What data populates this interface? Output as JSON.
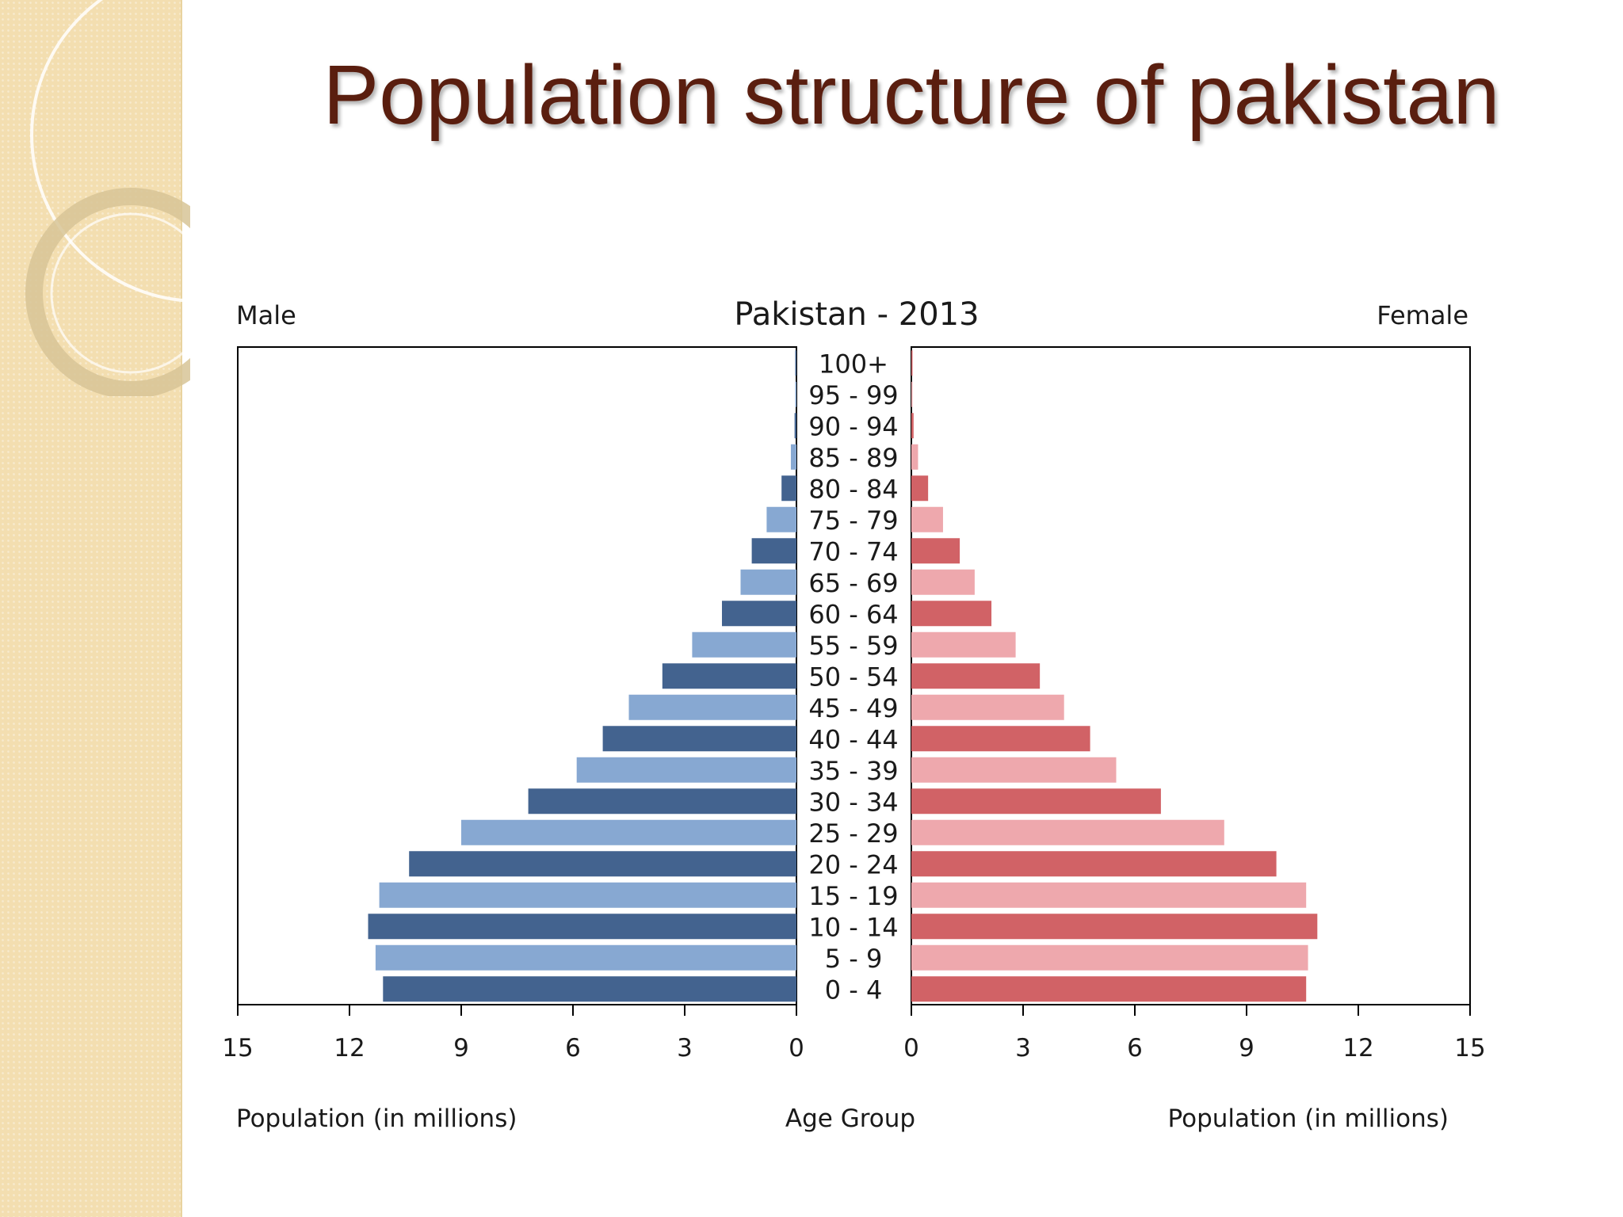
{
  "slide": {
    "title": "Population structure of pakistan"
  },
  "colors": {
    "title": "#5a1e0f",
    "male_dark": "#43638f",
    "male_light": "#87a8d2",
    "female_dark": "#d16266",
    "female_light": "#eea8ad",
    "sidebar": "#f3deb0"
  },
  "chart_data": {
    "type": "bar",
    "orientation": "horizontal-pyramid",
    "title": "Pakistan - 2013",
    "left_label": "Male",
    "right_label": "Female",
    "xlabel_left": "Population (in millions)",
    "xlabel_right": "Population (in millions)",
    "center_label": "Age Group",
    "xlim": [
      0,
      15
    ],
    "ticks": [
      "15",
      "12",
      "9",
      "6",
      "3",
      "0"
    ],
    "ticks_right": [
      "0",
      "3",
      "6",
      "9",
      "12",
      "15"
    ],
    "categories": [
      "0 - 4",
      "5 - 9",
      "10 - 14",
      "15 - 19",
      "20 - 24",
      "25 - 29",
      "30 - 34",
      "35 - 39",
      "40 - 44",
      "45 - 49",
      "50 - 54",
      "55 - 59",
      "60 - 64",
      "65 - 69",
      "70 - 74",
      "75 - 79",
      "80 - 84",
      "85 - 89",
      "90 - 94",
      "95 - 99",
      "100+"
    ],
    "series": [
      {
        "name": "Male",
        "values": [
          11.1,
          11.3,
          11.5,
          11.2,
          10.4,
          9.0,
          7.2,
          5.9,
          5.2,
          4.5,
          3.6,
          2.8,
          2.0,
          1.5,
          1.2,
          0.8,
          0.4,
          0.15,
          0.05,
          0.02,
          0.01
        ]
      },
      {
        "name": "Female",
        "values": [
          10.6,
          10.65,
          10.9,
          10.6,
          9.8,
          8.4,
          6.7,
          5.5,
          4.8,
          4.1,
          3.45,
          2.8,
          2.15,
          1.7,
          1.3,
          0.85,
          0.45,
          0.18,
          0.06,
          0.02,
          0.01
        ]
      }
    ]
  }
}
